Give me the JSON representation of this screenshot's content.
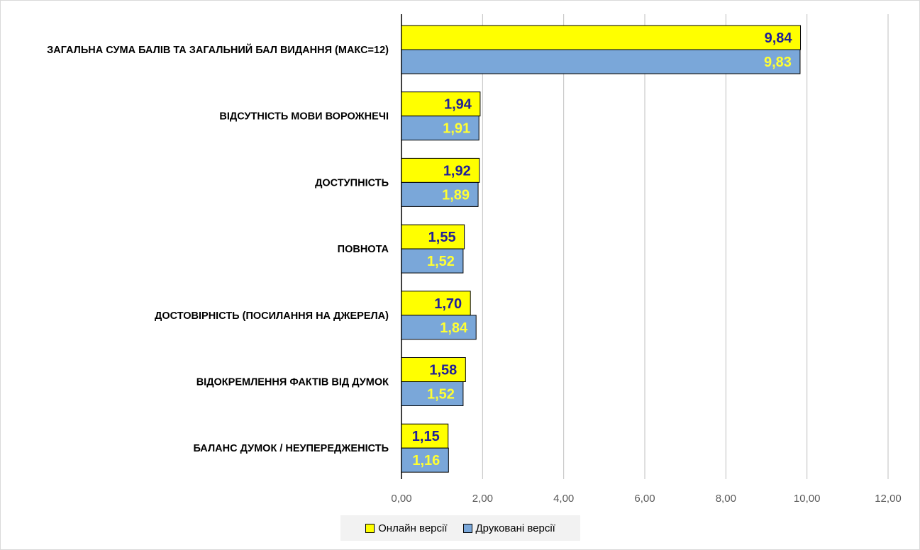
{
  "chart_data": {
    "type": "bar",
    "orientation": "horizontal",
    "categories": [
      "ЗАГАЛЬНА СУМА БАЛІВ ТА ЗАГАЛЬНИЙ БАЛ ВИДАННЯ (МАКС=12)",
      "ВІДСУТНІСТЬ МОВИ ВОРОЖНЕЧІ",
      "ДОСТУПНІСТЬ",
      "ПОВНОТА",
      "ДОСТОВІРНІСТЬ (ПОСИЛАННЯ НА ДЖЕРЕЛА)",
      "ВІДОКРЕМЛЕННЯ ФАКТІВ ВІД ДУМОК",
      "БАЛАНС ДУМОК / НЕУПЕРЕДЖЕНІСТЬ"
    ],
    "series": [
      {
        "name": "Онлайн версії",
        "color": "#ffff00",
        "label_color": "#1f1f99",
        "values": [
          9.84,
          1.94,
          1.92,
          1.55,
          1.7,
          1.58,
          1.15
        ],
        "labels": [
          "9,84",
          "1,94",
          "1,92",
          "1,55",
          "1,70",
          "1,58",
          "1,15"
        ]
      },
      {
        "name": "Друковані версії",
        "color": "#7aa7d9",
        "label_color": "#ffff33",
        "values": [
          9.83,
          1.91,
          1.89,
          1.52,
          1.84,
          1.52,
          1.16
        ],
        "labels": [
          "9,83",
          "1,91",
          "1,89",
          "1,52",
          "1,84",
          "1,52",
          "1,16"
        ]
      }
    ],
    "xlim": [
      0,
      12
    ],
    "xticks": [
      0,
      2,
      4,
      6,
      8,
      10,
      12
    ],
    "xtick_labels": [
      "0,00",
      "2,00",
      "4,00",
      "6,00",
      "8,00",
      "10,00",
      "12,00"
    ],
    "grid": true,
    "legend_position": "bottom"
  }
}
